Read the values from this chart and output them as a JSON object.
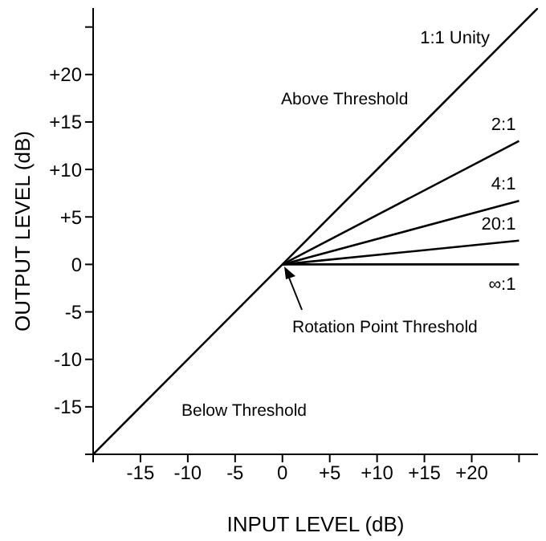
{
  "chart_data": {
    "type": "line",
    "xlabel": "INPUT LEVEL (dB)",
    "ylabel": "OUTPUT LEVEL (dB)",
    "xlim": [
      -20,
      27
    ],
    "ylim": [
      -20,
      27
    ],
    "xticks": [
      {
        "value": -20,
        "label": null
      },
      -15,
      -10,
      -5,
      0,
      {
        "value": 5,
        "label": "+5"
      },
      {
        "value": 10,
        "label": "+10"
      },
      {
        "value": 15,
        "label": "+15"
      },
      {
        "value": 20,
        "label": "+20"
      },
      {
        "value": 25,
        "label": null
      }
    ],
    "yticks": [
      {
        "value": -20,
        "label": null
      },
      -15,
      -10,
      -5,
      0,
      {
        "value": 5,
        "label": "+5"
      },
      {
        "value": 10,
        "label": "+10"
      },
      {
        "value": 15,
        "label": "+15"
      },
      {
        "value": 20,
        "label": "+20"
      },
      {
        "value": 25,
        "label": null
      }
    ],
    "series": [
      {
        "name": "1:1 Unity",
        "color": "#000000",
        "x": [
          -20,
          27
        ],
        "values": [
          -20,
          27
        ]
      },
      {
        "name": "2:1",
        "color": "#000000",
        "x": [
          0,
          25
        ],
        "values": [
          0,
          13
        ]
      },
      {
        "name": "4:1",
        "color": "#000000",
        "x": [
          0,
          25
        ],
        "values": [
          0,
          6.7
        ]
      },
      {
        "name": "20:1",
        "color": "#000000",
        "x": [
          0,
          25
        ],
        "values": [
          0,
          2.5
        ]
      },
      {
        "name": "∞:1",
        "color": "#000000",
        "x": [
          0,
          25
        ],
        "values": [
          0,
          0
        ]
      }
    ],
    "annotations": [
      "Above Threshold",
      "Rotation Point Threshold",
      "Below Threshold"
    ],
    "marker": "none",
    "line_style": "solid"
  }
}
